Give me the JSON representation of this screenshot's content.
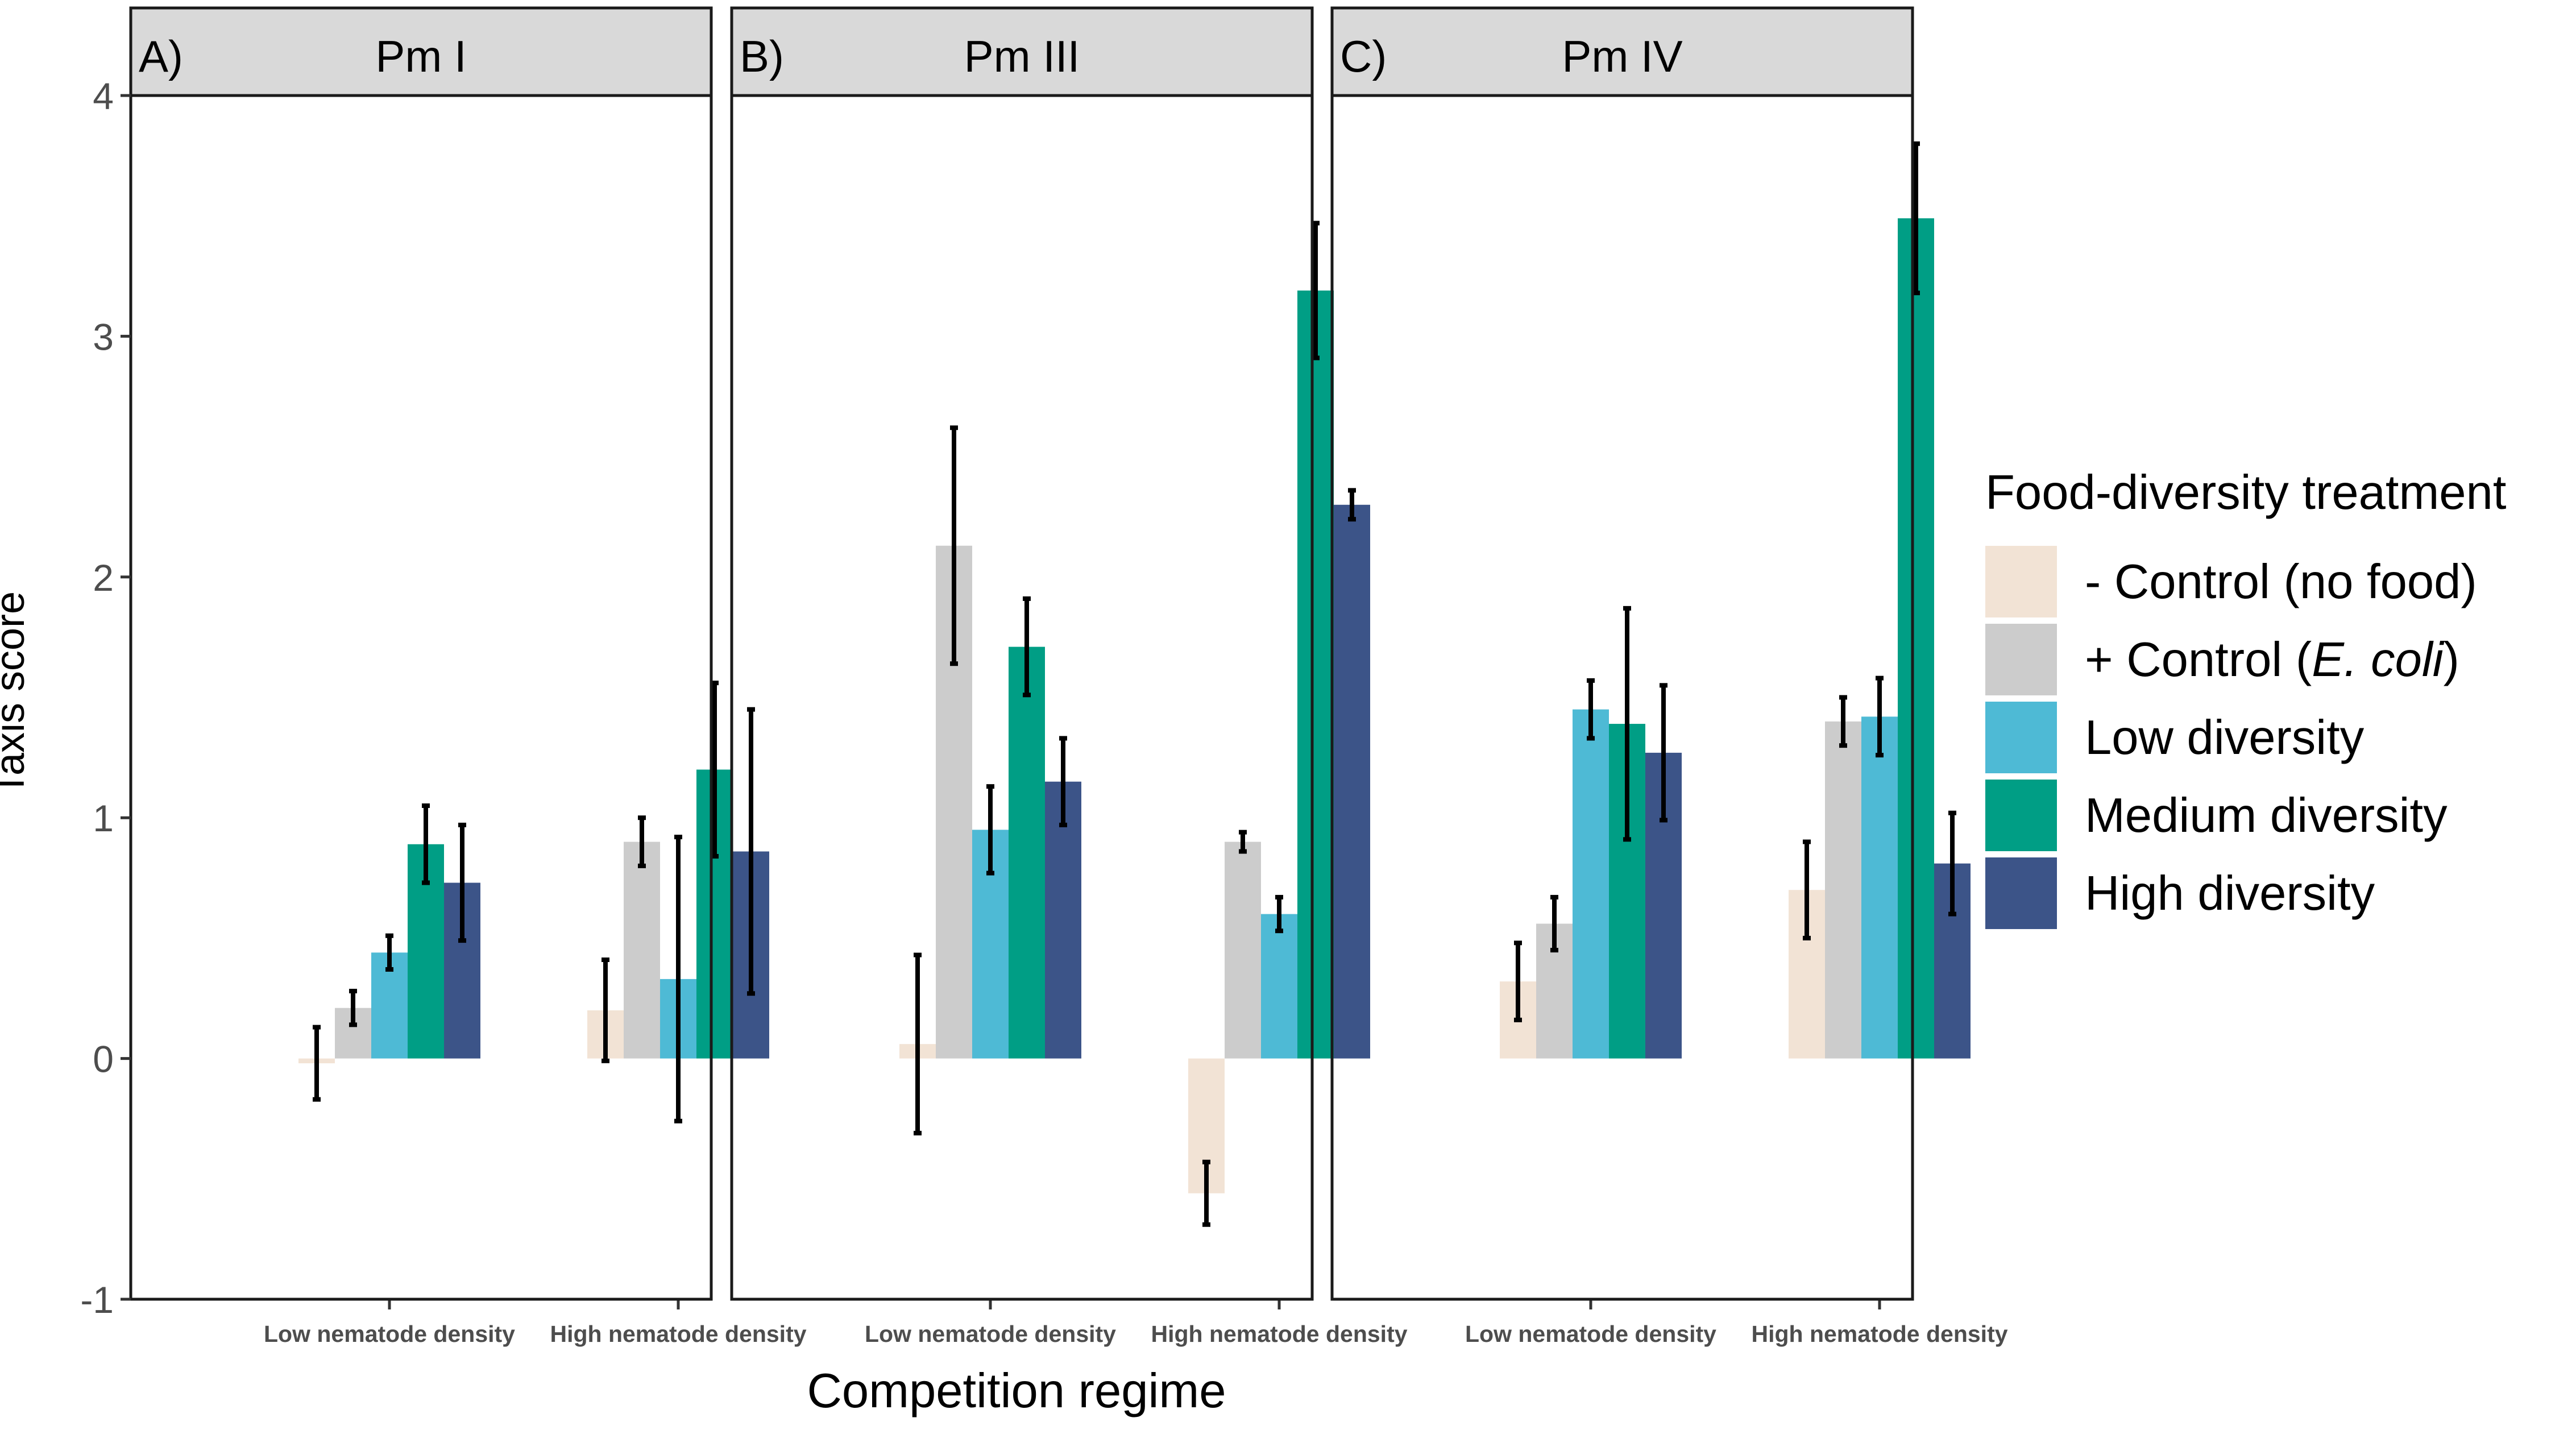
{
  "chart_data": {
    "type": "bar",
    "ylabel": "Taxis score",
    "xlabel": "Competition regime",
    "ylim": [
      -1,
      4
    ],
    "yticks": [
      "-1",
      "0",
      "1",
      "2",
      "3",
      "4"
    ],
    "grid": false,
    "categories": [
      "Low nematode density",
      "High nematode density"
    ],
    "legend": {
      "title": "Food-diversity treatment",
      "placement": "right",
      "entries": [
        {
          "prefix": "- Control (no food)",
          "italic": "",
          "suffix": "",
          "color": "#F2E3D5"
        },
        {
          "prefix": "+ Control (",
          "italic": "E. coli",
          "suffix": ")",
          "color": "#CCCCCC"
        },
        {
          "prefix": "Low diversity",
          "italic": "",
          "suffix": "",
          "color": "#4EBAD5"
        },
        {
          "prefix": "Medium diversity",
          "italic": "",
          "suffix": "",
          "color": "#009E85"
        },
        {
          "prefix": "High diversity",
          "italic": "",
          "suffix": "",
          "color": "#3C5488"
        }
      ]
    },
    "panels": [
      {
        "label": "A)",
        "strain": "Pm I",
        "values": [
          [
            -0.02,
            0.21,
            0.44,
            0.89,
            0.73
          ],
          [
            0.2,
            0.9,
            0.33,
            1.2,
            0.86
          ]
        ],
        "errors": [
          [
            0.15,
            0.07,
            0.07,
            0.16,
            0.24
          ],
          [
            0.21,
            0.1,
            0.59,
            0.36,
            0.59
          ]
        ]
      },
      {
        "label": "B)",
        "strain": "Pm III",
        "values": [
          [
            0.06,
            2.13,
            0.95,
            1.71,
            1.15
          ],
          [
            -0.56,
            0.9,
            0.6,
            3.19,
            2.3
          ]
        ],
        "errors": [
          [
            0.37,
            0.49,
            0.18,
            0.2,
            0.18
          ],
          [
            0.13,
            0.04,
            0.07,
            0.28,
            0.06
          ]
        ]
      },
      {
        "label": "C)",
        "strain": "Pm IV",
        "values": [
          [
            0.32,
            0.56,
            1.45,
            1.39,
            1.27
          ],
          [
            0.7,
            1.4,
            1.42,
            3.49,
            0.81
          ]
        ],
        "errors": [
          [
            0.16,
            0.11,
            0.12,
            0.48,
            0.28
          ],
          [
            0.2,
            0.1,
            0.16,
            0.31,
            0.21
          ]
        ]
      }
    ]
  }
}
